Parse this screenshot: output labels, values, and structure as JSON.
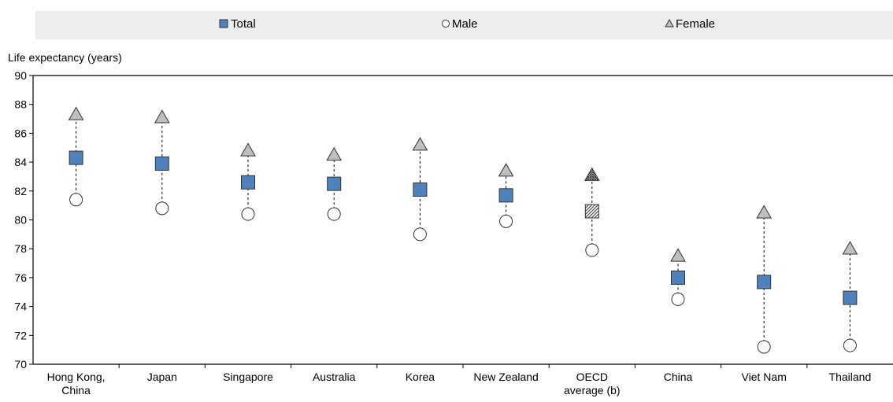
{
  "chart_data": {
    "type": "scatter",
    "ylabel": "Life expectancy (years)",
    "ylim": [
      70,
      90
    ],
    "yticks": [
      70,
      72,
      74,
      76,
      78,
      80,
      82,
      84,
      86,
      88,
      90
    ],
    "categories": [
      [
        "Hong Kong,",
        "China"
      ],
      [
        "Japan"
      ],
      [
        "Singapore"
      ],
      [
        "Australia"
      ],
      [
        "Korea"
      ],
      [
        "New Zealand"
      ],
      [
        "OECD",
        "average (b)"
      ],
      [
        "China"
      ],
      [
        "Viet Nam"
      ],
      [
        "Thailand"
      ]
    ],
    "series": [
      {
        "name": "Total",
        "marker": "square",
        "color": "#4F81BD",
        "values": [
          84.3,
          83.9,
          82.6,
          82.5,
          82.1,
          81.7,
          80.6,
          76.0,
          75.7,
          74.6
        ]
      },
      {
        "name": "Male",
        "marker": "circle",
        "color": "#FFFFFF",
        "values": [
          81.4,
          80.8,
          80.4,
          80.4,
          79.0,
          79.9,
          77.9,
          74.5,
          71.2,
          71.3
        ]
      },
      {
        "name": "Female",
        "marker": "triangle",
        "color": "#BFBFBF",
        "values": [
          87.3,
          87.1,
          84.8,
          84.5,
          85.2,
          83.4,
          83.1,
          77.5,
          80.5,
          78.0
        ]
      }
    ],
    "highlight_category_index": 6,
    "legend_position": "top",
    "grid": false,
    "colors": {
      "legend_background": "#EDEDED",
      "axis": "#000000",
      "connector": "#000000",
      "marker_outline": "#333333"
    }
  }
}
